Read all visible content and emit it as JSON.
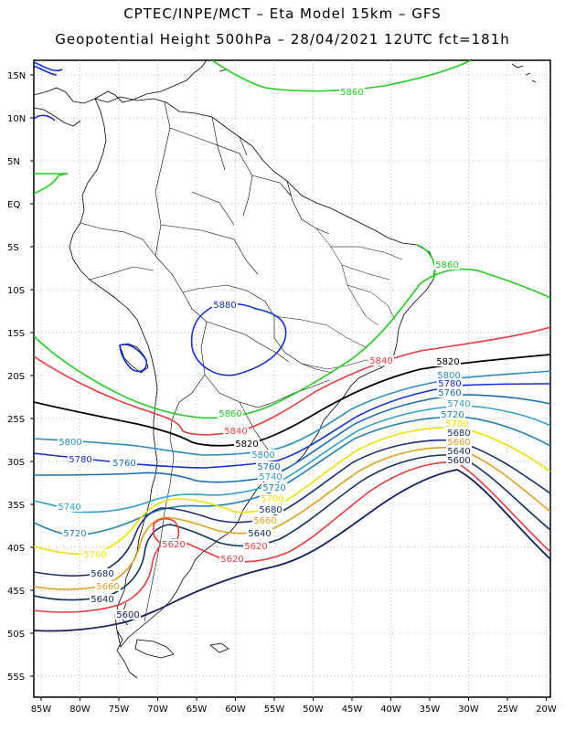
{
  "header": {
    "title_line1": "CPTEC/INPE/MCT –  Eta Model 15km – GFS",
    "title_line2": "Geopotential Height 500hPa – 28/04/2021 12UTC fct=181h"
  },
  "map": {
    "lat_labels": [
      "15N",
      "10N",
      "5N",
      "EQ",
      "5S",
      "10S",
      "15S",
      "20S",
      "25S",
      "30S",
      "35S",
      "40S",
      "45S",
      "50S",
      "55S"
    ],
    "lon_labels": [
      "85W",
      "80W",
      "75W",
      "70W",
      "65W",
      "60W",
      "55W",
      "50W",
      "45W",
      "40W",
      "35W",
      "30W",
      "25W",
      "20W"
    ],
    "contour_colors": {
      "5880": "#22cc22",
      "5860": "#22cc22",
      "5840": "#e83c3c",
      "5820": "#000000",
      "5800": "#2a8fc0",
      "5780": "#1030d0",
      "5760": "#1a6ab8",
      "5740": "#30a0d0",
      "5720": "#2080b0",
      "5700": "#f0e000",
      "5680": "#183070",
      "5660": "#e0a020",
      "5640": "#103060",
      "5620": "#e83c3c",
      "5600": "#102060"
    },
    "contour_labels": [
      {
        "text": "5860",
        "color": "5860"
      },
      {
        "text": "5860",
        "color": "5860"
      },
      {
        "text": "5880",
        "color": "5780"
      },
      {
        "text": "5860",
        "color": "5860"
      },
      {
        "text": "5840",
        "color": "5840"
      },
      {
        "text": "5840",
        "color": "5840"
      },
      {
        "text": "5820",
        "color": "5820"
      },
      {
        "text": "5820",
        "color": "5820"
      },
      {
        "text": "5800",
        "color": "5800"
      },
      {
        "text": "5800",
        "color": "5800"
      },
      {
        "text": "5800",
        "color": "5800"
      },
      {
        "text": "5780",
        "color": "5780"
      },
      {
        "text": "5780",
        "color": "5780"
      },
      {
        "text": "5780",
        "color": "5780"
      },
      {
        "text": "5760",
        "color": "5760"
      },
      {
        "text": "5760",
        "color": "5760"
      },
      {
        "text": "5760",
        "color": "5760"
      },
      {
        "text": "5740",
        "color": "5740"
      },
      {
        "text": "5740",
        "color": "5740"
      },
      {
        "text": "5740",
        "color": "5740"
      },
      {
        "text": "5720",
        "color": "5720"
      },
      {
        "text": "5720",
        "color": "5720"
      },
      {
        "text": "5720",
        "color": "5720"
      },
      {
        "text": "5700",
        "color": "5700"
      },
      {
        "text": "5700",
        "color": "5700"
      },
      {
        "text": "5700",
        "color": "5700"
      },
      {
        "text": "5680",
        "color": "5680"
      },
      {
        "text": "5680",
        "color": "5680"
      },
      {
        "text": "5680",
        "color": "5680"
      },
      {
        "text": "5660",
        "color": "5660"
      },
      {
        "text": "5660",
        "color": "5660"
      },
      {
        "text": "5660",
        "color": "5660"
      },
      {
        "text": "5640",
        "color": "5640"
      },
      {
        "text": "5640",
        "color": "5640"
      },
      {
        "text": "5640",
        "color": "5640"
      },
      {
        "text": "5620",
        "color": "5620"
      },
      {
        "text": "5620",
        "color": "5620"
      },
      {
        "text": "5620",
        "color": "5620"
      },
      {
        "text": "5600",
        "color": "5600"
      },
      {
        "text": "5600",
        "color": "5600"
      }
    ]
  }
}
